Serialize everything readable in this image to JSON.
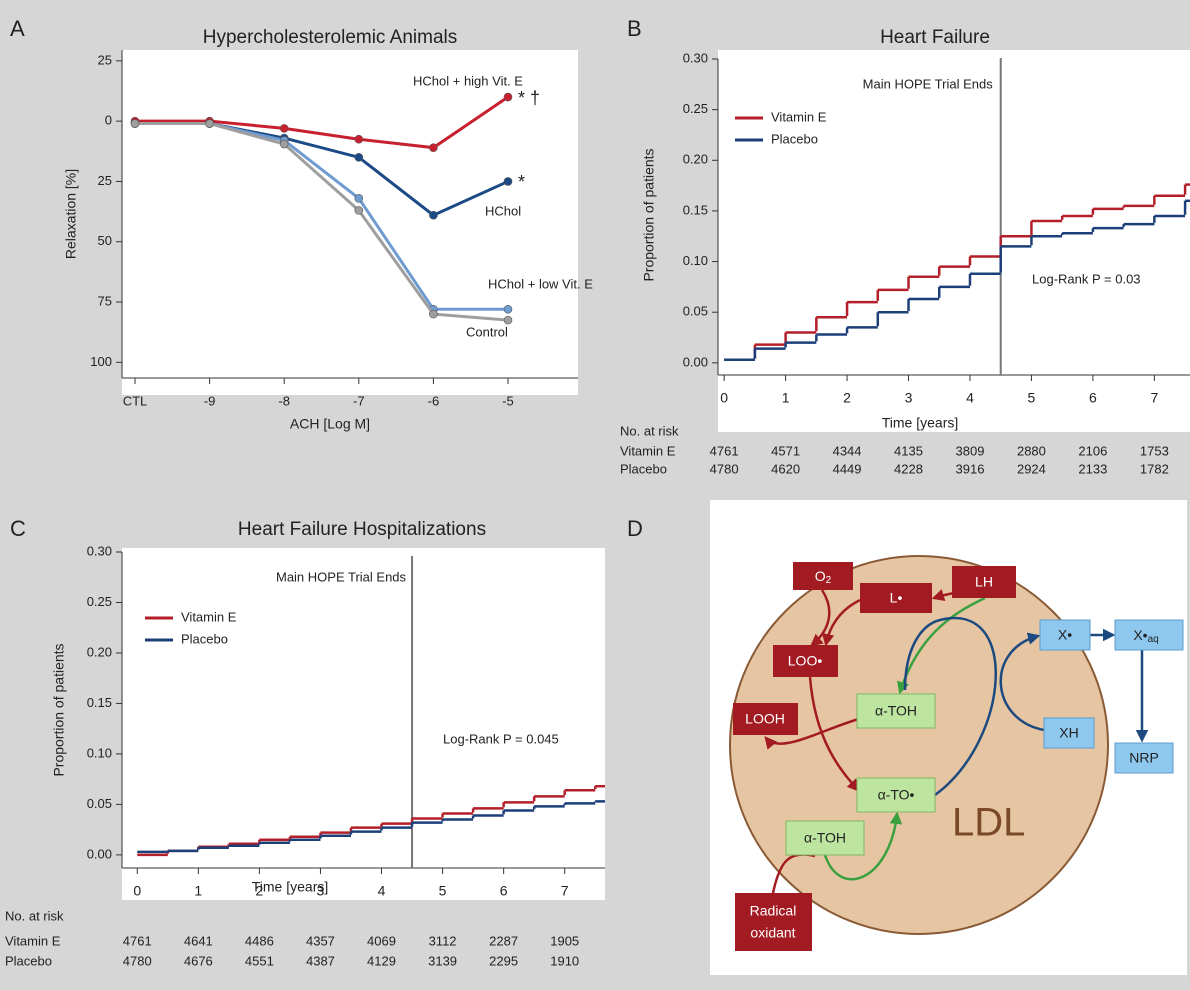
{
  "chart_data": [
    {
      "type": "line",
      "panel": "A",
      "title": "Hypercholesterolemic Animals",
      "y_label": "Relaxation [%]",
      "x_label": "ACH [Log M]",
      "categories": [
        "CTL",
        "-9",
        "-8",
        "-7",
        "-6",
        "-5"
      ],
      "ylim": [
        -29.5,
        106.5
      ],
      "y_inverted": true,
      "yticks": [
        {
          "value": -25,
          "label": "25"
        },
        0,
        25,
        50,
        75,
        100
      ],
      "markers": true,
      "series": [
        {
          "name": "HChol + high Vit. E",
          "color": "#c8202f",
          "values": [
            0,
            0,
            3,
            7.5,
            11,
            -10
          ],
          "note": "* †"
        },
        {
          "name": "HChol",
          "color": "#1b4a86",
          "values": [
            1,
            1,
            7,
            15,
            39,
            25
          ],
          "note": "*"
        },
        {
          "name": "HChol + low Vit. E",
          "color": "#6e9bd0",
          "values": [
            1,
            1,
            8,
            32,
            78,
            78
          ]
        },
        {
          "name": "Control",
          "color": "#9e9e9e",
          "values": [
            1,
            1,
            9.5,
            37,
            80,
            82.5
          ]
        }
      ]
    },
    {
      "type": "step",
      "panel": "B",
      "title": "Heart Failure",
      "y_label": "Proportion of patients",
      "x_label": "Time [years]",
      "x": [
        0,
        0.5,
        1,
        1.5,
        2,
        2.5,
        3,
        3.5,
        4,
        4.5,
        5,
        5.5,
        6,
        6.5,
        7,
        7.5
      ],
      "xlim": [
        -0.1,
        7.58
      ],
      "xticks": [
        0,
        1,
        2,
        3,
        4,
        5,
        6,
        7
      ],
      "ylim": [
        -0.012,
        0.3
      ],
      "yticks": [
        {
          "value": 0,
          "label": "0.00"
        },
        0.05,
        {
          "value": 0.1,
          "label": "0.10"
        },
        0.15,
        {
          "value": 0.2,
          "label": "0.20"
        },
        0.25,
        {
          "value": 0.3,
          "label": "0.30"
        }
      ],
      "legend": "upper left",
      "vline": {
        "x": 4.5,
        "label": "Main HOPE Trial Ends"
      },
      "annotation": "Log-Rank P = 0.03",
      "series": [
        {
          "name": "Vitamin E",
          "color": "#b41e28",
          "values": [
            0.003,
            0.018,
            0.03,
            0.045,
            0.06,
            0.072,
            0.085,
            0.095,
            0.105,
            0.125,
            0.14,
            0.145,
            0.152,
            0.155,
            0.165,
            0.176
          ]
        },
        {
          "name": "Placebo",
          "color": "#1c3f7a",
          "values": [
            0.003,
            0.014,
            0.02,
            0.028,
            0.035,
            0.05,
            0.063,
            0.075,
            0.088,
            0.115,
            0.125,
            0.128,
            0.133,
            0.137,
            0.145,
            0.16
          ]
        }
      ],
      "risk_table": {
        "title": "No. at risk",
        "rows": [
          {
            "name": "Vitamin E",
            "values": [
              4761,
              4571,
              4344,
              4135,
              3809,
              2880,
              2106,
              1753
            ]
          },
          {
            "name": "Placebo",
            "values": [
              4780,
              4620,
              4449,
              4228,
              3916,
              2924,
              2133,
              1782
            ]
          }
        ]
      }
    },
    {
      "type": "step",
      "panel": "C",
      "title": "Heart Failure Hospitalizations",
      "y_label": "Proportion of patients",
      "x_label": "Time [years]",
      "x": [
        0,
        0.5,
        1,
        1.5,
        2,
        2.5,
        3,
        3.5,
        4,
        4.5,
        5,
        5.5,
        6,
        6.5,
        7,
        7.5
      ],
      "xlim": [
        -0.25,
        7.66
      ],
      "xticks": [
        0,
        1,
        2,
        3,
        4,
        5,
        6,
        7
      ],
      "ylim": [
        -0.013,
        0.3
      ],
      "yticks": [
        {
          "value": 0,
          "label": "0.00"
        },
        0.05,
        {
          "value": 0.1,
          "label": "0.10"
        },
        0.15,
        {
          "value": 0.2,
          "label": "0.20"
        },
        0.25,
        {
          "value": 0.3,
          "label": "0.30"
        }
      ],
      "legend": "upper left",
      "vline": {
        "x": 4.5,
        "label": "Main HOPE Trial Ends"
      },
      "annotation": "Log-Rank P = 0.045",
      "series": [
        {
          "name": "Vitamin E",
          "color": "#b41e28",
          "values": [
            0,
            0.004,
            0.008,
            0.011,
            0.015,
            0.018,
            0.022,
            0.027,
            0.031,
            0.036,
            0.041,
            0.046,
            0.052,
            0.058,
            0.064,
            0.068
          ]
        },
        {
          "name": "Placebo",
          "color": "#1c3f7a",
          "values": [
            0.003,
            0.004,
            0.007,
            0.009,
            0.012,
            0.015,
            0.019,
            0.023,
            0.027,
            0.032,
            0.035,
            0.039,
            0.044,
            0.048,
            0.051,
            0.053
          ]
        }
      ],
      "risk_table": {
        "title": "No. at risk",
        "rows": [
          {
            "name": "Vitamin E",
            "values": [
              4761,
              4641,
              4486,
              4357,
              4069,
              3112,
              2287,
              1905
            ]
          },
          {
            "name": "Placebo",
            "values": [
              4780,
              4676,
              4551,
              4387,
              4129,
              3139,
              2295,
              1910
            ]
          }
        ]
      }
    }
  ],
  "diagram": {
    "panel": "D",
    "region": "LDL",
    "nodes": [
      {
        "label": "O",
        "sub": "2"
      },
      {
        "label": "L•"
      },
      {
        "label": "LH"
      },
      {
        "label": "LOO•"
      },
      {
        "label": "LOOH"
      },
      {
        "label": "α-TOH"
      },
      {
        "label": "α-TO•"
      },
      {
        "label": "α-TOH"
      },
      {
        "label": "X•"
      },
      {
        "label": "X•",
        "sub": "aq"
      },
      {
        "label": "XH"
      },
      {
        "label": "NRP"
      },
      {
        "label": [
          "Radical",
          "oxidant"
        ]
      }
    ]
  }
}
